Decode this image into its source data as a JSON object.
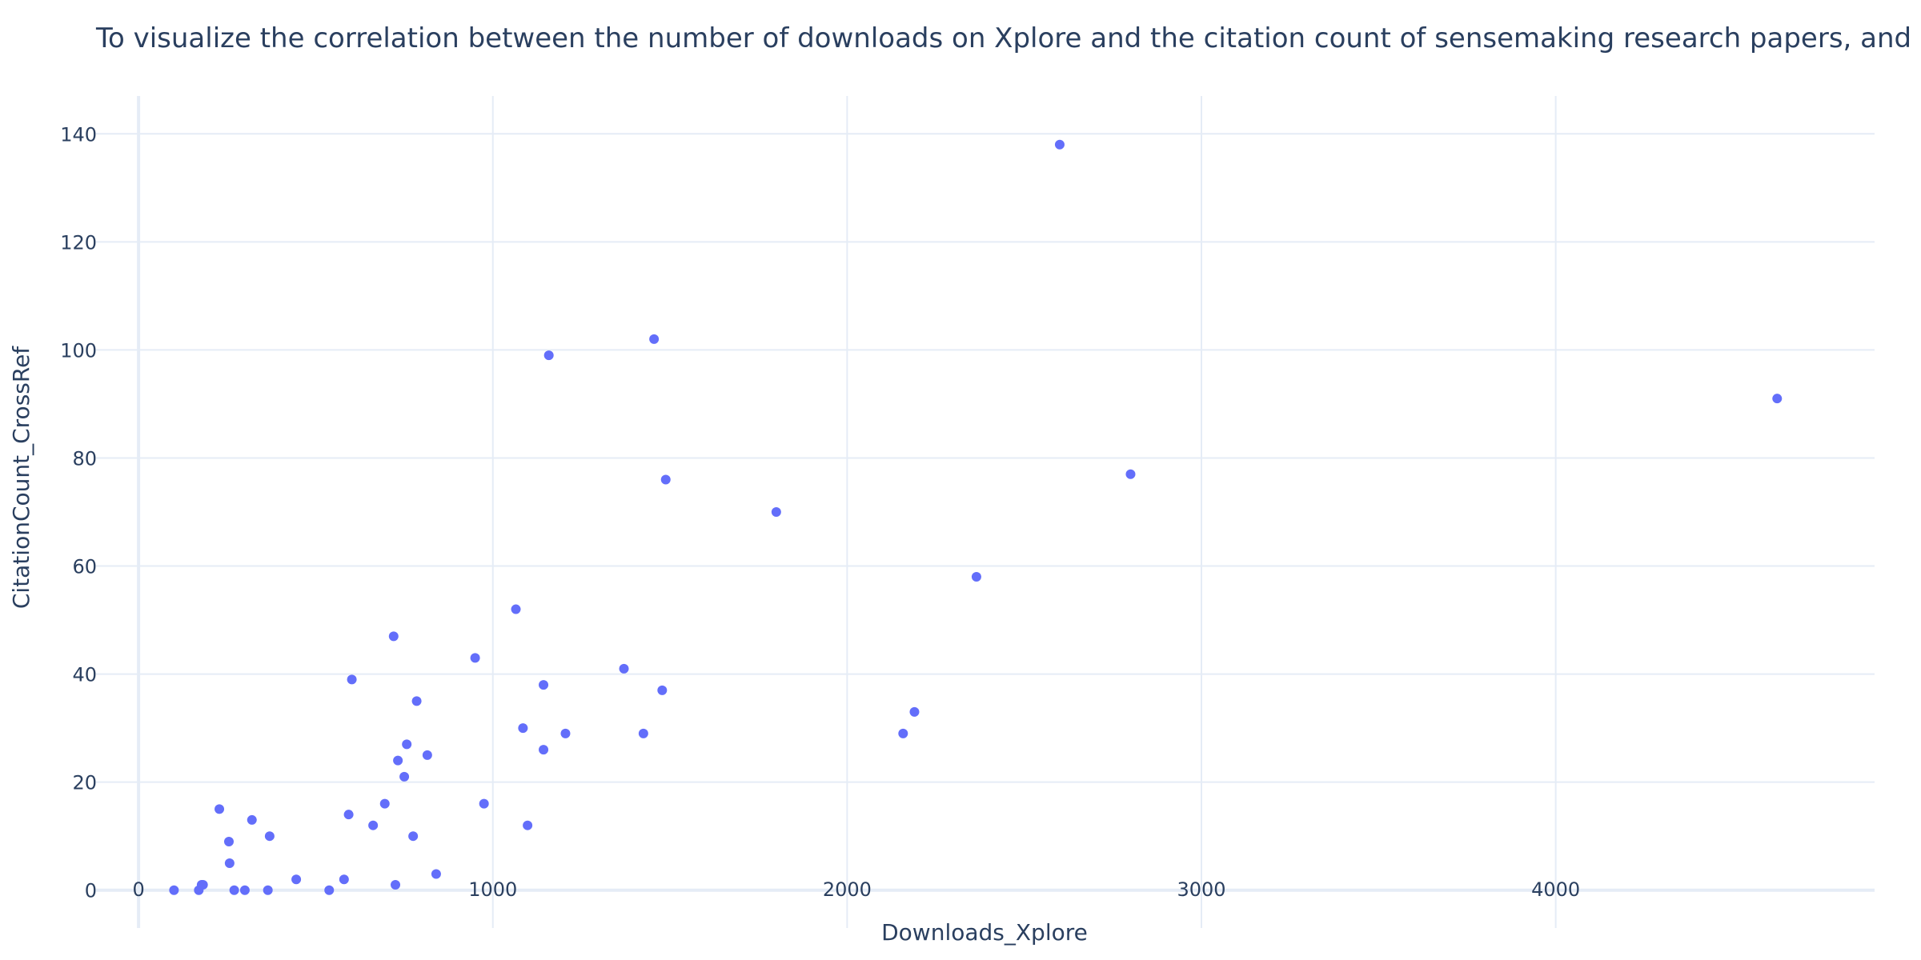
{
  "chart_data": {
    "type": "scatter",
    "title": "To visualize the correlation between the number of downloads on Xplore and the citation count of sensemaking research papers, and",
    "xlabel": "Downloads_Xplore",
    "ylabel": "CitationCount_CrossRef",
    "xlim": [
      -120,
      4900
    ],
    "ylim": [
      -7,
      147
    ],
    "xticks": [
      0,
      1000,
      2000,
      3000,
      4000
    ],
    "yticks": [
      0,
      20,
      40,
      60,
      80,
      100,
      120,
      140
    ],
    "grid": true,
    "marker_color": "#636efa",
    "series": [
      {
        "points": [
          [
            100,
            0
          ],
          [
            170,
            0
          ],
          [
            178,
            1
          ],
          [
            182,
            1
          ],
          [
            228,
            15
          ],
          [
            255,
            9
          ],
          [
            257,
            5
          ],
          [
            270,
            0
          ],
          [
            300,
            0
          ],
          [
            320,
            13
          ],
          [
            365,
            0
          ],
          [
            370,
            10
          ],
          [
            445,
            2
          ],
          [
            538,
            0
          ],
          [
            580,
            2
          ],
          [
            593,
            14
          ],
          [
            602,
            39
          ],
          [
            662,
            12
          ],
          [
            695,
            16
          ],
          [
            720,
            47
          ],
          [
            725,
            1
          ],
          [
            732,
            24
          ],
          [
            750,
            21
          ],
          [
            757,
            27
          ],
          [
            775,
            10
          ],
          [
            785,
            35
          ],
          [
            815,
            25
          ],
          [
            840,
            3
          ],
          [
            950,
            43
          ],
          [
            975,
            16
          ],
          [
            1065,
            52
          ],
          [
            1085,
            30
          ],
          [
            1098,
            12
          ],
          [
            1143,
            38
          ],
          [
            1143,
            26
          ],
          [
            1158,
            99
          ],
          [
            1205,
            29
          ],
          [
            1370,
            41
          ],
          [
            1425,
            29
          ],
          [
            1455,
            102
          ],
          [
            1478,
            37
          ],
          [
            1488,
            76
          ],
          [
            1800,
            70
          ],
          [
            2158,
            29
          ],
          [
            2190,
            33
          ],
          [
            2365,
            58
          ],
          [
            2600,
            138
          ],
          [
            2800,
            77
          ],
          [
            4625,
            91
          ]
        ]
      }
    ]
  }
}
